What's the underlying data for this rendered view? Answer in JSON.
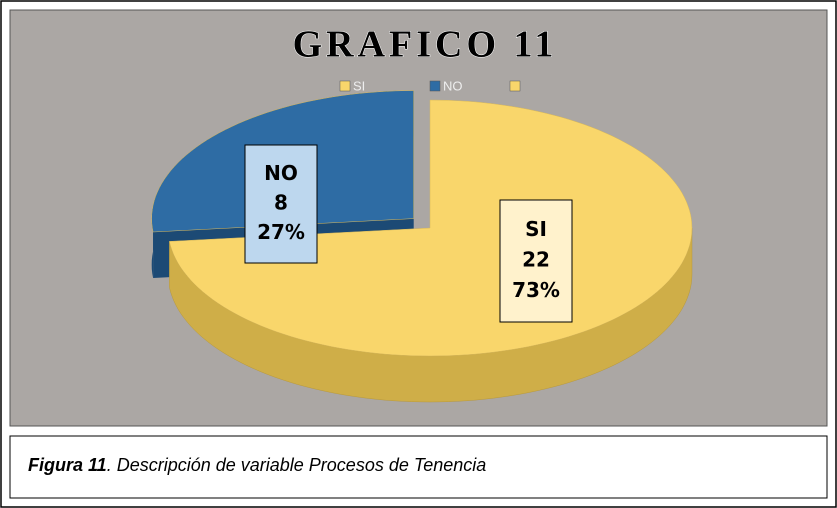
{
  "chart_data": {
    "type": "pie3d",
    "title": "GRAFICO 11",
    "categories": [
      "SI",
      "NO",
      null
    ],
    "values": [
      22,
      8,
      null
    ],
    "percents": [
      73,
      27,
      null
    ],
    "percent_labels": [
      "73%",
      "27%",
      null
    ],
    "colors": [
      "#f9d66b",
      "#2e6ca4",
      "#f9d66b"
    ],
    "side_colors": [
      "#cfae48",
      "#1c4a75",
      "#cfae48"
    ],
    "label_fills": [
      "#fff2cc",
      "#bdd7ee",
      null
    ],
    "exploded": [
      false,
      true,
      false
    ],
    "legend": "top"
  },
  "caption": {
    "label": "Figura 11",
    "text": ". Descripción de variable Procesos de Tenencia"
  }
}
